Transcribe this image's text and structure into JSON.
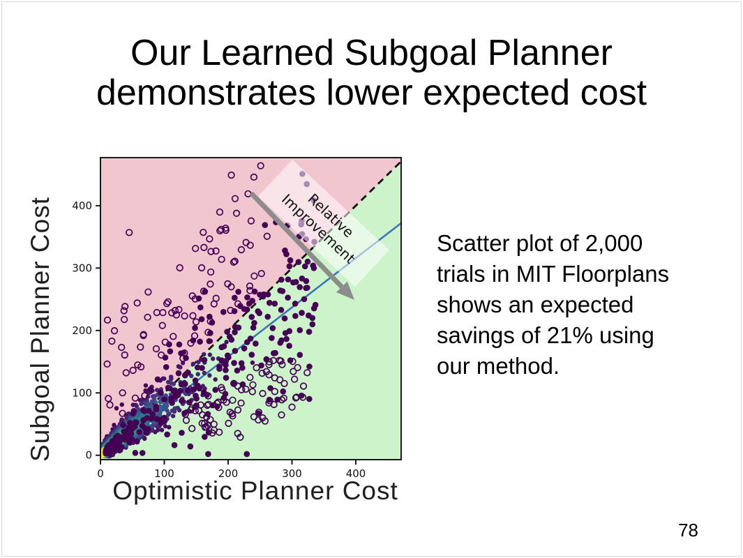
{
  "slide": {
    "title_lines": [
      "Our Learned Subgoal Planner",
      "demonstrates lower expected cost"
    ],
    "side_text_lines": [
      "Scatter plot of 2,000",
      "trials in MIT Floorplans",
      "shows an expected",
      "savings of 21% using",
      "our method."
    ],
    "page_number": "78"
  },
  "chart_data": {
    "type": "scatter",
    "title": "",
    "xlabel": "Optimistic Planner Cost",
    "ylabel": "Subgoal Planner Cost",
    "x_ticks": [
      0,
      100,
      200,
      300,
      400
    ],
    "y_ticks": [
      0,
      100,
      200,
      300,
      400
    ],
    "xlim": [
      0,
      471
    ],
    "ylim": [
      -7,
      477
    ],
    "n_trials": 2000,
    "expected_savings_pct": 21,
    "description": "Each point is one trial: optimistic planner cost (x) vs subgoal planner cost (y). Points are density-colored with a viridis map (yellow = dense near origin, dark purple = sparse). Pink region above the dashed parity line y=x means the subgoal planner did worse; green region below means it did better. Solid blue line is the expected-cost trend (~21% savings).",
    "regions": {
      "above_parity_color": "#f2c6ce",
      "below_parity_color": "#cdf3ca"
    },
    "reference_lines": [
      {
        "name": "parity",
        "slope": 1,
        "intercept": 0,
        "style": "dashed",
        "color": "#111111"
      },
      {
        "name": "expected-cost-fit",
        "slope": 0.79,
        "intercept": 0,
        "style": "solid",
        "color": "#3a75b9"
      }
    ],
    "annotation": {
      "lines": [
        "Relative",
        "Improvement"
      ],
      "rotation_deg": 43,
      "band_color": "rgba(255,255,255,0.55)",
      "arrow_color": "#8c8c8c",
      "text_color": "#111111"
    },
    "density_colormap": {
      "name": "viridis",
      "stops": [
        "#440154",
        "#414487",
        "#2a788e",
        "#22a884",
        "#7ad151",
        "#fde725"
      ]
    },
    "point_color_sparse": "#440154",
    "generator": {
      "seed": 42,
      "core": {
        "count": 1500,
        "arm_slope": 0.85,
        "length_mean": 46,
        "length_max": 290,
        "spread_base": 3.4,
        "spread_growth": 0.105,
        "radius": 3.2
      },
      "filled_scatter": {
        "count": 260,
        "x_max": 330,
        "ratio_mean": 0.8,
        "ratio_sd": 0.3,
        "radius": 4.3
      },
      "open_above": {
        "count": 80,
        "x_range": [
          8,
          258
        ],
        "offset_range": [
          20,
          210
        ],
        "radius": 4.3
      },
      "open_below": {
        "count": 62,
        "x_range": [
          130,
          330
        ],
        "ratio_range": [
          0.2,
          0.58
        ],
        "radius": 4.3
      }
    },
    "outlier_points": {
      "open": [
        [
          251,
          464
        ],
        [
          205,
          449
        ],
        [
          45,
          357
        ],
        [
          189,
          362
        ],
        [
          196,
          364
        ],
        [
          228,
          341
        ],
        [
          261,
          351
        ],
        [
          97,
          208
        ],
        [
          117,
          232
        ],
        [
          119,
          225
        ],
        [
          306,
          92
        ],
        [
          317,
          93
        ],
        [
          215,
          111
        ],
        [
          221,
          105
        ],
        [
          238,
          102
        ],
        [
          248,
          69
        ],
        [
          254,
          60
        ],
        [
          203,
          69
        ],
        [
          207,
          63
        ],
        [
          163,
          51
        ],
        [
          166,
          45
        ],
        [
          172,
          57
        ],
        [
          186,
          37
        ],
        [
          215,
          35
        ],
        [
          219,
          29
        ],
        [
          260,
          134
        ],
        [
          264,
          129
        ],
        [
          273,
          124
        ],
        [
          281,
          121
        ],
        [
          288,
          115
        ]
      ],
      "filled": [
        [
          326,
          224
        ],
        [
          332,
          220
        ],
        [
          296,
          199
        ],
        [
          283,
          233
        ],
        [
          260,
          154
        ],
        [
          235,
          187
        ],
        [
          243,
          179
        ],
        [
          252,
          144
        ],
        [
          333,
          304
        ],
        [
          302,
          277
        ],
        [
          322,
          268
        ],
        [
          296,
          303
        ],
        [
          273,
          243
        ],
        [
          305,
          243
        ],
        [
          216,
          262
        ],
        [
          233,
          243
        ],
        [
          230,
          253
        ],
        [
          262,
          222
        ]
      ]
    }
  }
}
